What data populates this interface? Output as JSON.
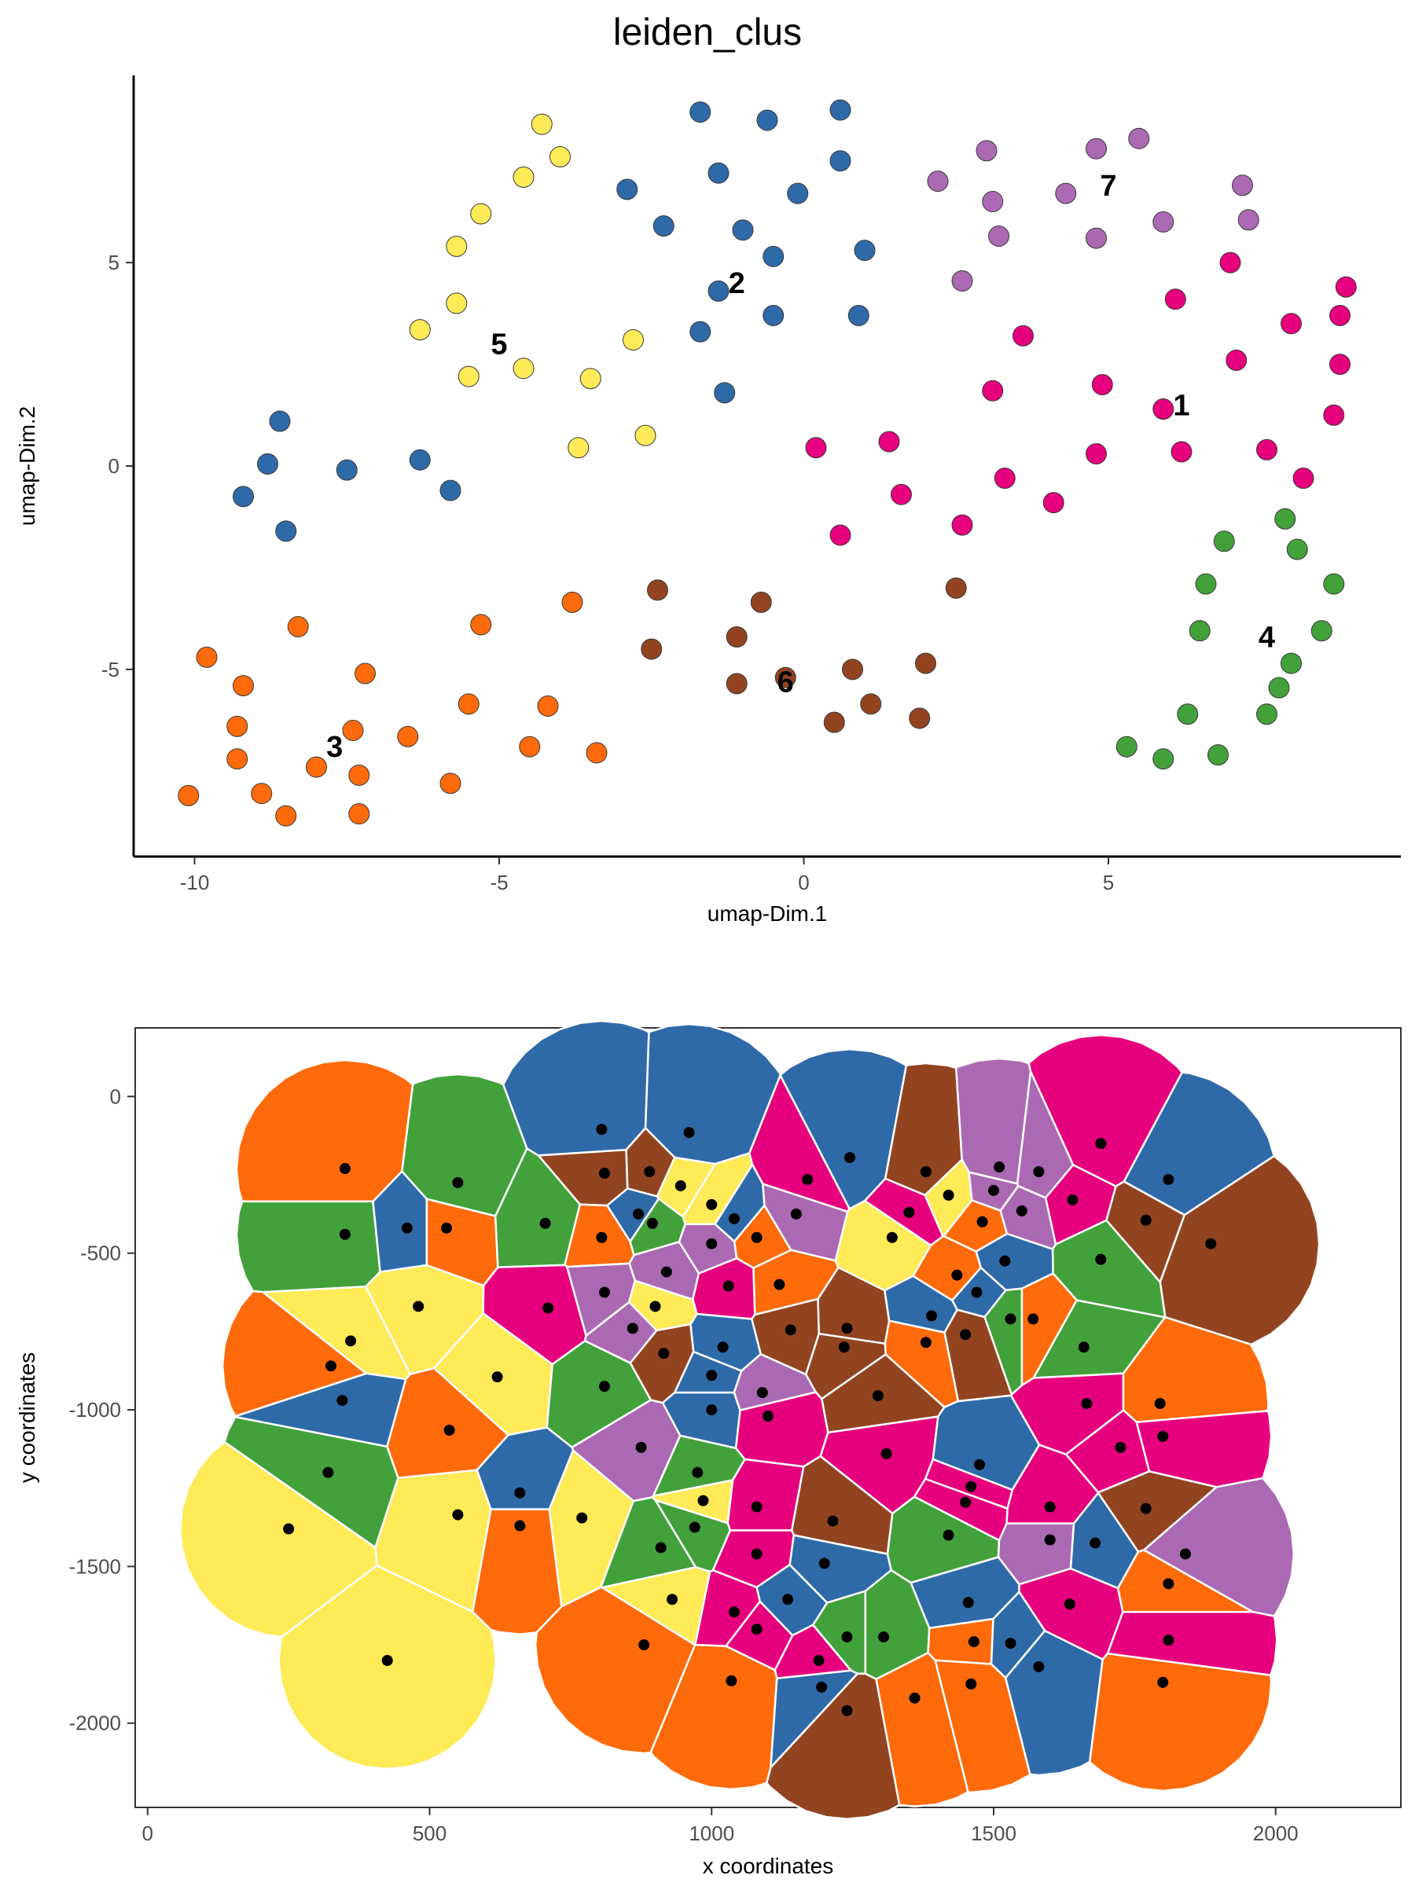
{
  "title": "leiden_clus",
  "colors": {
    "1": "#E7007E",
    "2": "#2F6AA8",
    "3": "#FF6A0A",
    "4": "#43A13B",
    "5": "#FFEA57",
    "6": "#924421",
    "7": "#AC69B3"
  },
  "chart_data": [
    {
      "type": "scatter",
      "title": "leiden_clus",
      "xlabel": "umap-Dim.1",
      "ylabel": "umap-Dim.2",
      "xlim": [
        -11,
        9.8
      ],
      "ylim": [
        -9.6,
        9.6
      ],
      "xticks": [
        -10,
        -5,
        0,
        5
      ],
      "yticks": [
        5,
        0,
        -5
      ],
      "tick_labels_x": [
        "-10",
        "-5",
        "0",
        "5"
      ],
      "tick_labels_y": [
        "5",
        "0",
        "-5"
      ],
      "cluster_labels": [
        {
          "text": "1",
          "x": 6.2,
          "y": 1.5
        },
        {
          "text": "2",
          "x": -1.1,
          "y": 4.5
        },
        {
          "text": "3",
          "x": -7.7,
          "y": -6.9
        },
        {
          "text": "4",
          "x": 7.6,
          "y": -4.2
        },
        {
          "text": "5",
          "x": -5.0,
          "y": 3.0
        },
        {
          "text": "6",
          "x": -0.3,
          "y": -5.3
        },
        {
          "text": "7",
          "x": 5.0,
          "y": 6.9
        }
      ],
      "series": [
        {
          "name": "1",
          "points": [
            [
              0.2,
              0.45
            ],
            [
              1.4,
              0.6
            ],
            [
              1.6,
              -0.7
            ],
            [
              0.6,
              -1.7
            ],
            [
              2.6,
              -1.45
            ],
            [
              3.1,
              1.85
            ],
            [
              3.6,
              3.2
            ],
            [
              3.3,
              -0.3
            ],
            [
              4.1,
              -0.9
            ],
            [
              4.9,
              2.0
            ],
            [
              4.8,
              0.3
            ],
            [
              5.9,
              1.4
            ],
            [
              6.1,
              4.1
            ],
            [
              6.2,
              0.35
            ],
            [
              7.0,
              5.0
            ],
            [
              7.1,
              2.6
            ],
            [
              7.6,
              0.4
            ],
            [
              8.0,
              3.5
            ],
            [
              8.2,
              -0.3
            ],
            [
              8.7,
              1.25
            ],
            [
              8.8,
              3.7
            ],
            [
              8.8,
              2.5
            ],
            [
              8.9,
              4.4
            ]
          ]
        },
        {
          "name": "2",
          "points": [
            [
              -9.2,
              -0.75
            ],
            [
              -8.8,
              0.05
            ],
            [
              -8.6,
              1.1
            ],
            [
              -8.5,
              -1.6
            ],
            [
              -7.5,
              -0.1
            ],
            [
              -6.3,
              0.15
            ],
            [
              -5.8,
              -0.6
            ],
            [
              -2.9,
              6.8
            ],
            [
              -2.3,
              5.9
            ],
            [
              -1.7,
              8.7
            ],
            [
              -1.7,
              3.3
            ],
            [
              -1.4,
              7.2
            ],
            [
              -1.4,
              4.3
            ],
            [
              -1.3,
              1.8
            ],
            [
              -1.0,
              5.8
            ],
            [
              -0.6,
              8.5
            ],
            [
              -0.5,
              5.15
            ],
            [
              -0.5,
              3.7
            ],
            [
              -0.1,
              6.7
            ],
            [
              0.6,
              8.75
            ],
            [
              0.6,
              7.5
            ],
            [
              0.9,
              3.7
            ],
            [
              1.0,
              5.3
            ]
          ]
        },
        {
          "name": "3",
          "points": [
            [
              -10.1,
              -8.1
            ],
            [
              -9.8,
              -4.7
            ],
            [
              -9.3,
              -6.4
            ],
            [
              -9.3,
              -7.2
            ],
            [
              -9.2,
              -5.4
            ],
            [
              -8.9,
              -8.05
            ],
            [
              -8.5,
              -8.6
            ],
            [
              -8.3,
              -3.95
            ],
            [
              -8.0,
              -7.4
            ],
            [
              -7.4,
              -6.5
            ],
            [
              -7.3,
              -7.6
            ],
            [
              -7.3,
              -8.55
            ],
            [
              -7.2,
              -5.1
            ],
            [
              -6.5,
              -6.65
            ],
            [
              -5.8,
              -7.8
            ],
            [
              -5.5,
              -5.85
            ],
            [
              -5.3,
              -3.9
            ],
            [
              -4.5,
              -6.9
            ],
            [
              -4.2,
              -5.9
            ],
            [
              -3.8,
              -3.35
            ],
            [
              -3.4,
              -7.05
            ]
          ]
        },
        {
          "name": "4",
          "points": [
            [
              5.3,
              -6.9
            ],
            [
              5.9,
              -7.2
            ],
            [
              6.3,
              -6.1
            ],
            [
              6.5,
              -4.05
            ],
            [
              6.6,
              -2.9
            ],
            [
              6.8,
              -7.1
            ],
            [
              6.9,
              -1.85
            ],
            [
              7.6,
              -6.1
            ],
            [
              7.8,
              -5.45
            ],
            [
              7.9,
              -1.3
            ],
            [
              8.0,
              -4.85
            ],
            [
              8.1,
              -2.05
            ],
            [
              8.5,
              -4.05
            ],
            [
              8.7,
              -2.9
            ]
          ]
        },
        {
          "name": "5",
          "points": [
            [
              -6.3,
              3.35
            ],
            [
              -5.7,
              4.0
            ],
            [
              -5.7,
              5.4
            ],
            [
              -5.5,
              2.2
            ],
            [
              -5.3,
              6.2
            ],
            [
              -4.6,
              7.1
            ],
            [
              -4.6,
              2.4
            ],
            [
              -4.3,
              8.4
            ],
            [
              -4.0,
              7.6
            ],
            [
              -3.7,
              0.45
            ],
            [
              -3.5,
              2.15
            ],
            [
              -2.8,
              3.1
            ],
            [
              -2.6,
              0.75
            ]
          ]
        },
        {
          "name": "6",
          "points": [
            [
              -2.5,
              -4.5
            ],
            [
              -2.4,
              -3.05
            ],
            [
              -1.1,
              -4.2
            ],
            [
              -1.1,
              -5.35
            ],
            [
              -0.7,
              -3.35
            ],
            [
              -0.3,
              -5.2
            ],
            [
              0.5,
              -6.3
            ],
            [
              0.8,
              -5.0
            ],
            [
              1.1,
              -5.85
            ],
            [
              1.9,
              -6.2
            ],
            [
              2.0,
              -4.85
            ],
            [
              2.5,
              -3.0
            ]
          ]
        },
        {
          "name": "7",
          "points": [
            [
              2.2,
              7.0
            ],
            [
              2.6,
              4.55
            ],
            [
              3.0,
              7.75
            ],
            [
              3.1,
              6.5
            ],
            [
              3.2,
              5.65
            ],
            [
              4.3,
              6.7
            ],
            [
              4.8,
              7.8
            ],
            [
              4.8,
              5.6
            ],
            [
              5.5,
              8.05
            ],
            [
              5.9,
              6.0
            ],
            [
              7.2,
              6.9
            ],
            [
              7.3,
              6.05
            ]
          ]
        }
      ]
    },
    {
      "type": "scatter",
      "xlabel": "x coordinates",
      "ylabel": "y coordinates",
      "xlim": [
        -22,
        2222
      ],
      "ylim": [
        -2269,
        219
      ],
      "xticks": [
        0,
        500,
        1000,
        1500,
        2000
      ],
      "yticks": [
        0,
        -500,
        -1000,
        -1500,
        -2000
      ],
      "tick_labels_x": [
        "0",
        "500",
        "1000",
        "1500",
        "2000"
      ],
      "tick_labels_y": [
        "0",
        "-500",
        "-1000",
        "-1500",
        "-2000"
      ],
      "cells": [
        [
          350,
          -230,
          "3"
        ],
        [
          550,
          -275,
          "4"
        ],
        [
          350,
          -440,
          "4"
        ],
        [
          460,
          -420,
          "2"
        ],
        [
          530,
          -420,
          "3"
        ],
        [
          705,
          -405,
          "4"
        ],
        [
          805,
          -105,
          "2"
        ],
        [
          960,
          -115,
          "2"
        ],
        [
          810,
          -245,
          "6"
        ],
        [
          890,
          -240,
          "6"
        ],
        [
          945,
          -285,
          "5"
        ],
        [
          870,
          -375,
          "2"
        ],
        [
          1000,
          -345,
          "5"
        ],
        [
          1170,
          -265,
          "1"
        ],
        [
          1245,
          -195,
          "2"
        ],
        [
          1380,
          -240,
          "6"
        ],
        [
          1510,
          -225,
          "7"
        ],
        [
          1690,
          -150,
          "1"
        ],
        [
          1810,
          -265,
          "2"
        ],
        [
          1580,
          -240,
          "7"
        ],
        [
          1500,
          -300,
          "7"
        ],
        [
          1640,
          -330,
          "1"
        ],
        [
          1350,
          -370,
          "1"
        ],
        [
          1420,
          -315,
          "5"
        ],
        [
          1480,
          -400,
          "3"
        ],
        [
          1550,
          -365,
          "7"
        ],
        [
          1770,
          -395,
          "6"
        ],
        [
          1885,
          -470,
          "6"
        ],
        [
          1150,
          -375,
          "7"
        ],
        [
          1080,
          -450,
          "3"
        ],
        [
          1040,
          -390,
          "2"
        ],
        [
          805,
          -450,
          "3"
        ],
        [
          895,
          -405,
          "4"
        ],
        [
          1000,
          -470,
          "7"
        ],
        [
          710,
          -675,
          "1"
        ],
        [
          1120,
          -600,
          "3"
        ],
        [
          920,
          -560,
          "7"
        ],
        [
          810,
          -625,
          "7"
        ],
        [
          1030,
          -605,
          "1"
        ],
        [
          1320,
          -450,
          "5"
        ],
        [
          1520,
          -525,
          "2"
        ],
        [
          1690,
          -520,
          "4"
        ],
        [
          1435,
          -570,
          "3"
        ],
        [
          1470,
          -625,
          "2"
        ],
        [
          1570,
          -710,
          "3"
        ],
        [
          1530,
          -710,
          "4"
        ],
        [
          1450,
          -760,
          "6"
        ],
        [
          1660,
          -800,
          "4"
        ],
        [
          1390,
          -700,
          "2"
        ],
        [
          1380,
          -785,
          "3"
        ],
        [
          1240,
          -740,
          "6"
        ],
        [
          1235,
          -800,
          "6"
        ],
        [
          1140,
          -745,
          "6"
        ],
        [
          1020,
          -800,
          "2"
        ],
        [
          900,
          -670,
          "5"
        ],
        [
          860,
          -740,
          "7"
        ],
        [
          915,
          -820,
          "6"
        ],
        [
          1000,
          -890,
          "2"
        ],
        [
          480,
          -670,
          "5"
        ],
        [
          360,
          -780,
          "5"
        ],
        [
          325,
          -860,
          "3"
        ],
        [
          620,
          -895,
          "5"
        ],
        [
          810,
          -925,
          "4"
        ],
        [
          1090,
          -945,
          "7"
        ],
        [
          1295,
          -955,
          "6"
        ],
        [
          1000,
          -1000,
          "2"
        ],
        [
          1100,
          -1020,
          "1"
        ],
        [
          1310,
          -1140,
          "1"
        ],
        [
          1475,
          -1175,
          "2"
        ],
        [
          1665,
          -980,
          "1"
        ],
        [
          1795,
          -980,
          "3"
        ],
        [
          1725,
          -1120,
          "1"
        ],
        [
          1800,
          -1085,
          "1"
        ],
        [
          345,
          -970,
          "2"
        ],
        [
          535,
          -1065,
          "3"
        ],
        [
          875,
          -1120,
          "7"
        ],
        [
          975,
          -1200,
          "4"
        ],
        [
          1080,
          -1310,
          "1"
        ],
        [
          1215,
          -1355,
          "6"
        ],
        [
          1460,
          -1245,
          "1"
        ],
        [
          1450,
          -1295,
          "1"
        ],
        [
          1600,
          -1310,
          "1"
        ],
        [
          1770,
          -1315,
          "6"
        ],
        [
          320,
          -1200,
          "4"
        ],
        [
          660,
          -1265,
          "2"
        ],
        [
          660,
          -1370,
          "3"
        ],
        [
          550,
          -1335,
          "5"
        ],
        [
          250,
          -1380,
          "5"
        ],
        [
          770,
          -1345,
          "5"
        ],
        [
          985,
          -1290,
          "5"
        ],
        [
          970,
          -1375,
          "4"
        ],
        [
          910,
          -1440,
          "4"
        ],
        [
          1080,
          -1460,
          "1"
        ],
        [
          1200,
          -1490,
          "2"
        ],
        [
          1420,
          -1400,
          "4"
        ],
        [
          1600,
          -1415,
          "7"
        ],
        [
          1680,
          -1425,
          "2"
        ],
        [
          1840,
          -1460,
          "7"
        ],
        [
          930,
          -1605,
          "5"
        ],
        [
          1040,
          -1645,
          "1"
        ],
        [
          1135,
          -1605,
          "2"
        ],
        [
          1080,
          -1700,
          "1"
        ],
        [
          1190,
          -1800,
          "1"
        ],
        [
          1240,
          -1725,
          "4"
        ],
        [
          1305,
          -1725,
          "4"
        ],
        [
          1455,
          -1615,
          "2"
        ],
        [
          1635,
          -1620,
          "1"
        ],
        [
          1810,
          -1555,
          "3"
        ],
        [
          1810,
          -1735,
          "1"
        ],
        [
          880,
          -1750,
          "3"
        ],
        [
          1035,
          -1865,
          "3"
        ],
        [
          1195,
          -1885,
          "2"
        ],
        [
          1240,
          -1960,
          "6"
        ],
        [
          1360,
          -1920,
          "3"
        ],
        [
          1465,
          -1740,
          "3"
        ],
        [
          1530,
          -1745,
          "2"
        ],
        [
          1460,
          -1875,
          "3"
        ],
        [
          1580,
          -1820,
          "2"
        ],
        [
          1800,
          -1870,
          "3"
        ],
        [
          425,
          -1800,
          "5"
        ]
      ]
    }
  ]
}
